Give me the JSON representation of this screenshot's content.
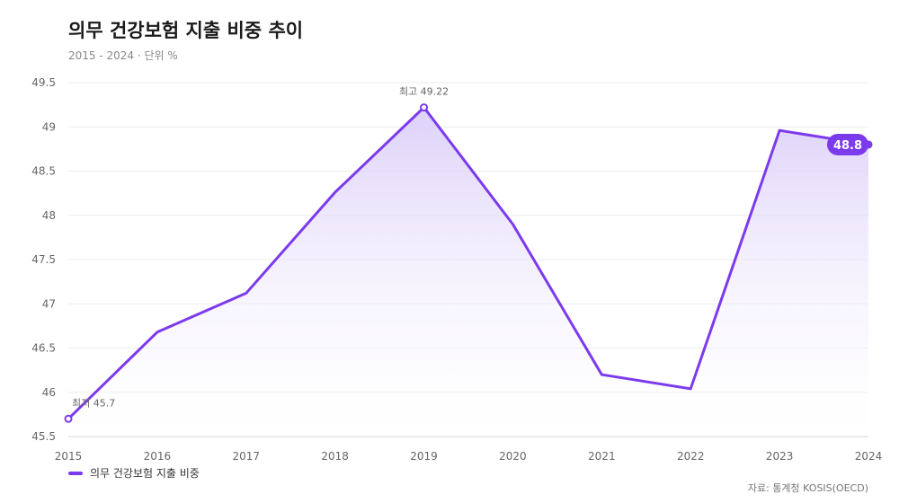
{
  "header": {
    "title": "의무 건강보험 지출 비중 추이",
    "subtitle": "2015 - 2024 · 단위 %"
  },
  "source": "자료: 통계청 KOSIS(OECD)",
  "colors": {
    "line": "#7c3aed",
    "fill_top": "#d9ccf8",
    "fill_bottom": "#ffffff",
    "grid": "#ececec",
    "axis": "#cfcfcf"
  },
  "chart_data": {
    "type": "area",
    "title": "의무 건강보험 지출 비중 추이",
    "x": [
      "2015",
      "2016",
      "2017",
      "2018",
      "2019",
      "2020",
      "2021",
      "2022",
      "2023",
      "2024"
    ],
    "ylim": [
      45.5,
      49.5
    ],
    "yticks": [
      "45.5",
      "46",
      "46.5",
      "47",
      "47.5",
      "48",
      "48.5",
      "49",
      "49.5"
    ],
    "grid": true,
    "legend_position": "bottom-left",
    "series": [
      {
        "name": "의무 건강보험 지출 비중",
        "values": [
          45.7,
          46.68,
          47.12,
          48.26,
          49.22,
          47.9,
          46.2,
          46.04,
          48.96,
          48.8
        ]
      }
    ],
    "annotations": {
      "max_label": "최고 49.22",
      "min_label": "최저 45.7",
      "last_label": "48.8"
    }
  }
}
